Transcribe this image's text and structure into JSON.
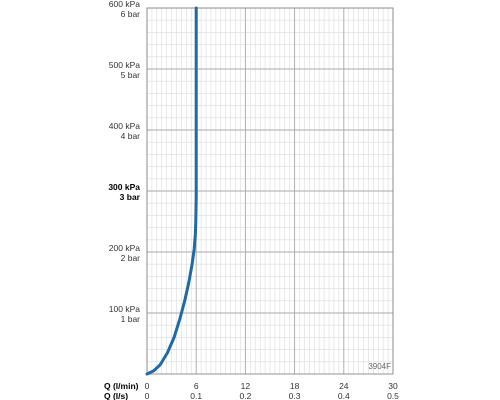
{
  "chart_data": {
    "type": "line",
    "figure_code": "3904F",
    "x_axis_rows": [
      {
        "label": "Q (l/min)",
        "ticks": [
          "0",
          "6",
          "12",
          "18",
          "24",
          "30"
        ]
      },
      {
        "label": "Q (l/s)",
        "ticks": [
          "0",
          "0.1",
          "0.2",
          "0.3",
          "0.4",
          "0.5"
        ]
      }
    ],
    "xlim": [
      0,
      30
    ],
    "ylim": [
      0,
      600
    ],
    "y_ticks": [
      {
        "value": 100,
        "kpa": "100 kPa",
        "bar": "1 bar",
        "bold": false
      },
      {
        "value": 200,
        "kpa": "200 kPa",
        "bar": "2 bar",
        "bold": false
      },
      {
        "value": 300,
        "kpa": "300 kPa",
        "bar": "3 bar",
        "bold": true
      },
      {
        "value": 400,
        "kpa": "400 kPa",
        "bar": "4 bar",
        "bold": false
      },
      {
        "value": 500,
        "kpa": "500 kPa",
        "bar": "5 bar",
        "bold": false
      },
      {
        "value": 600,
        "kpa": "600 kPa",
        "bar": "6 bar",
        "bold": false
      }
    ],
    "grid": true,
    "series": [
      {
        "color": "#1f6aa5",
        "x": [
          0,
          0.8,
          1.6,
          2.5,
          3.3,
          4.0,
          4.6,
          5.1,
          5.5,
          5.75,
          5.9,
          5.95,
          6.0,
          6.0
        ],
        "y": [
          0,
          5,
          15,
          35,
          60,
          90,
          120,
          150,
          180,
          205,
          230,
          250,
          290,
          600
        ]
      }
    ]
  }
}
